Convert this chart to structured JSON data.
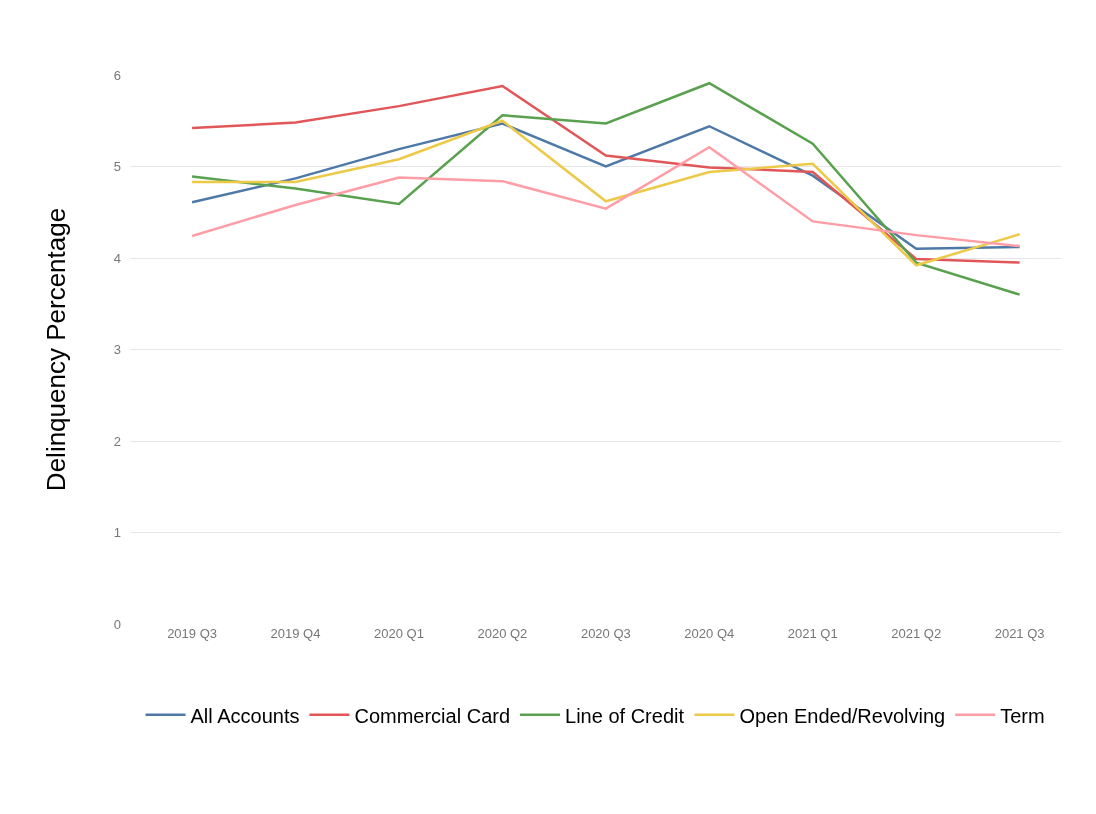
{
  "chart_data": {
    "type": "line",
    "ylabel": "Delinquency Percentage",
    "categories": [
      "2019 Q3",
      "2019 Q4",
      "2020 Q1",
      "2020 Q2",
      "2020 Q3",
      "2020 Q4",
      "2021 Q1",
      "2021 Q2",
      "2021 Q3"
    ],
    "series": [
      {
        "name": "All Accounts",
        "color": "#4e79a7",
        "values": [
          4.61,
          4.87,
          5.19,
          5.47,
          5.0,
          5.44,
          4.9,
          4.1,
          4.12
        ]
      },
      {
        "name": "Commercial Card",
        "color": "#e15759",
        "values": [
          5.42,
          5.48,
          5.66,
          5.88,
          5.12,
          4.99,
          4.94,
          3.99,
          3.95
        ]
      },
      {
        "name": "Line of Credit",
        "color": "#59a14f",
        "values": [
          4.89,
          4.76,
          4.59,
          5.56,
          5.47,
          5.91,
          5.25,
          3.95,
          3.6
        ]
      },
      {
        "name": "Open Ended/Revolving",
        "color": "#edc948",
        "values": [
          4.83,
          4.83,
          5.08,
          5.5,
          4.62,
          4.94,
          5.03,
          3.92,
          4.26
        ]
      },
      {
        "name": "Term",
        "color": "#ff9da7",
        "values": [
          4.24,
          4.58,
          4.88,
          4.84,
          4.54,
          5.21,
          4.4,
          4.25,
          4.13
        ]
      }
    ],
    "ylim": [
      0,
      6
    ],
    "yticks": [
      0,
      1,
      2,
      3,
      4,
      5,
      6
    ],
    "grid": "y",
    "legend": "bottom",
    "marker": "none",
    "line_style": "solid"
  }
}
